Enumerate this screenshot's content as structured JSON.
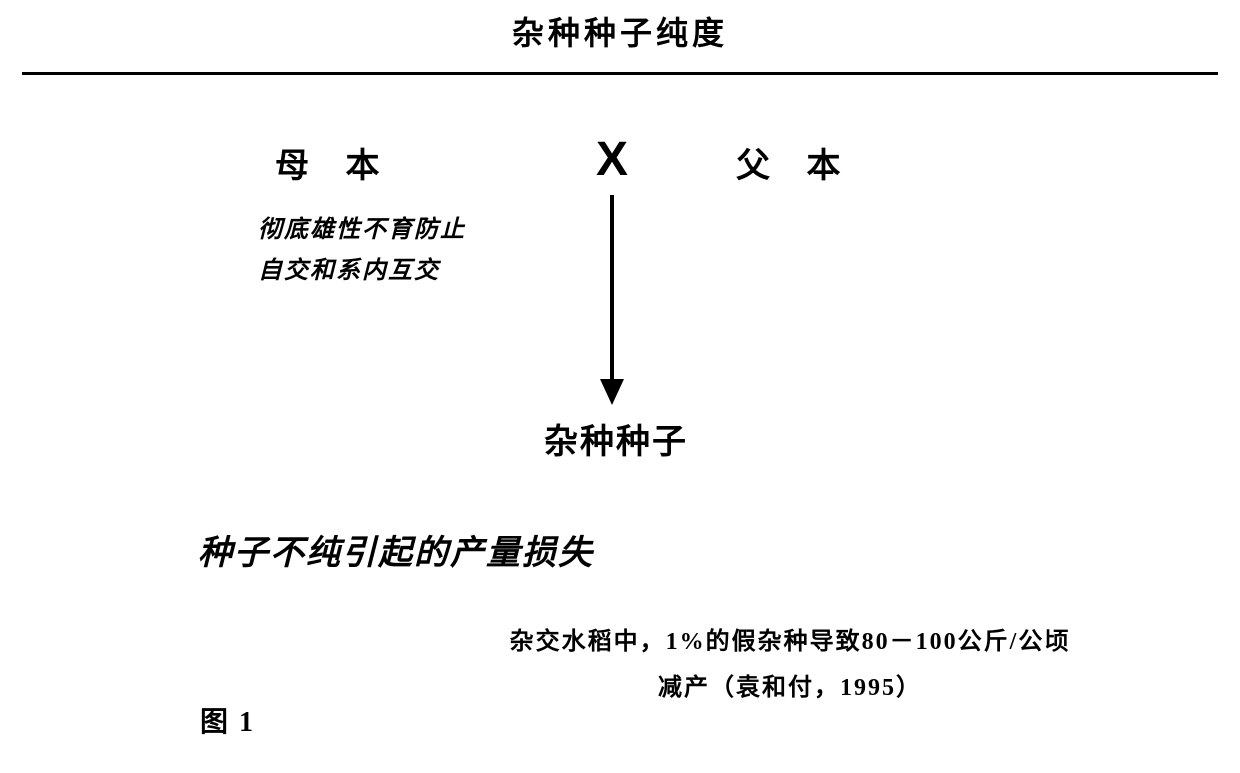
{
  "diagram": {
    "type": "flowchart",
    "title": "杂种种子纯度",
    "title_fontsize": 32,
    "background_color": "#ffffff",
    "text_color": "#000000",
    "divider_color": "#000000",
    "parents": {
      "mother": "母 本",
      "father": "父 本",
      "cross_symbol": "X",
      "parent_fontsize": 34
    },
    "mother_note_line1": "彻底雄性不育防止",
    "mother_note_line2": "自交和系内互交",
    "mother_note_fontsize": 24,
    "arrow": {
      "color": "#000000",
      "line_width": 4,
      "length": 190,
      "head_width": 24,
      "head_height": 26
    },
    "result": "杂种种子",
    "result_fontsize": 34,
    "subtitle": "种子不纯引起的产量损失",
    "subtitle_fontsize": 34,
    "footnote_line1": "杂交水稻中，1%的假杂种导致80－100公斤/公顷",
    "footnote_line2": "减产（袁和付，1995）",
    "footnote_fontsize": 24,
    "figure_label": "图 1",
    "figure_label_fontsize": 28
  }
}
